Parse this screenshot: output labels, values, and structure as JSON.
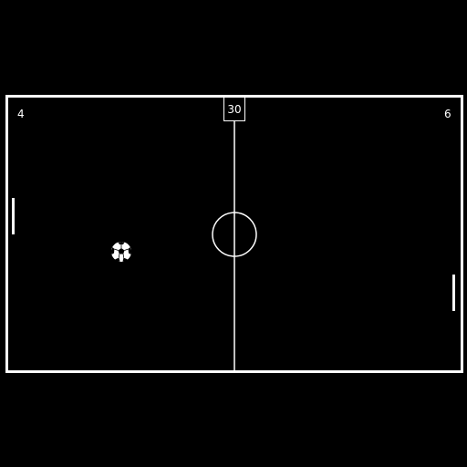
{
  "game": {
    "score_left": "4",
    "score_right": "6",
    "timer": "30"
  },
  "colors": {
    "background": "#000000",
    "lines": "#ffffff"
  }
}
